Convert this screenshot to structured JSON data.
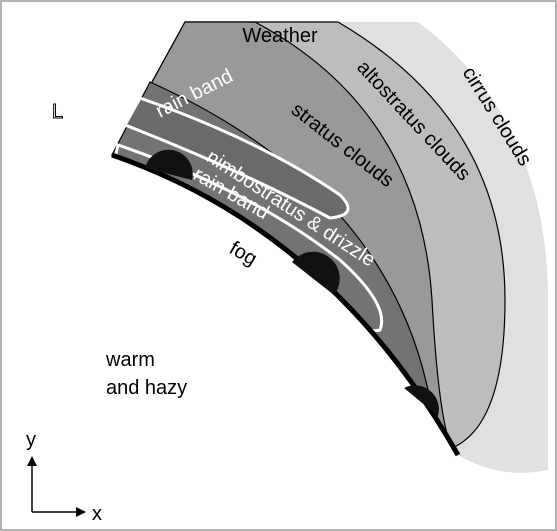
{
  "title": "Weather",
  "pressure_symbol": "L",
  "regions": {
    "cirrus": "cirrus clouds",
    "altostratus": "altostratus clouds",
    "stratus": "stratus clouds",
    "rain_band_upper": "rain band",
    "nimbostratus": "nimbostratus & drizzle",
    "rain_band_lower": "rain band",
    "fog": "fog"
  },
  "warm_label": [
    "warm",
    "and hazy"
  ],
  "axes": {
    "y": "y",
    "x": "x"
  }
}
